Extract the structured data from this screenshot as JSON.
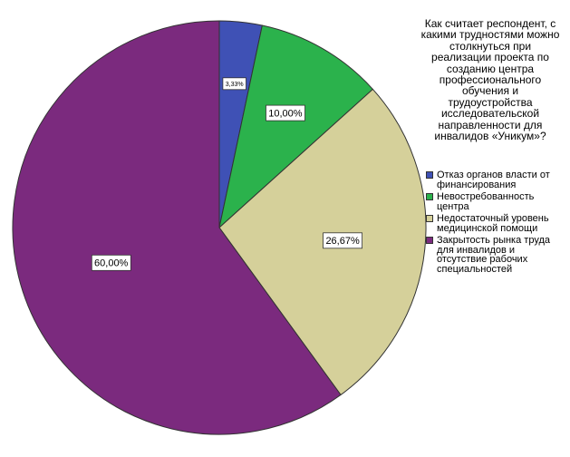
{
  "chart_data": {
    "type": "pie",
    "title": "",
    "legend_title": "Как считает респондент, с какими трудностями можно столкнуться при реализации проекта по созданию центра профессионального обучения и трудоустройства исследовательской направленности для инвалидов «Уникум»?",
    "legend_position": "right",
    "slices": [
      {
        "name": "Отказ органов власти от финансирования",
        "value": 3.33,
        "label": "3,33%",
        "color": "#3F51B5"
      },
      {
        "name": "Невостребованность центра",
        "value": 10.0,
        "label": "10,00%",
        "color": "#2BB24C"
      },
      {
        "name": "Недостаточный уровень медицинской помощи",
        "value": 26.67,
        "label": "26,67%",
        "color": "#D5D09A"
      },
      {
        "name": "Закрытость рынка труда для инвалидов и отсутствие рабочих специальностей",
        "value": 60.0,
        "label": "60,00%",
        "color": "#7B2A7E"
      }
    ]
  }
}
